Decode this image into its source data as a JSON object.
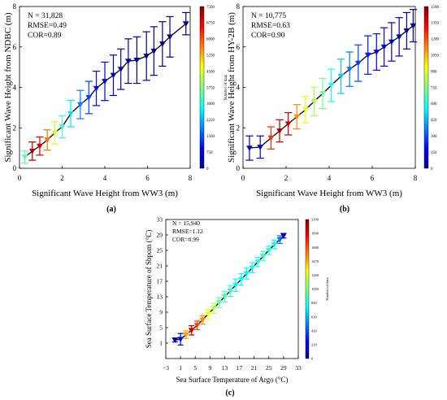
{
  "chart_data": [
    {
      "type": "line",
      "panel_label": "(a)",
      "xlabel": "Significant Wave Height from WW3 (m)",
      "ylabel": "Significant Wave Height from NDBC (m)",
      "xlim": [
        0,
        8
      ],
      "ylim": [
        0,
        8
      ],
      "xticks": [
        "0",
        "2",
        "4",
        "6",
        "8"
      ],
      "yticks": [
        "0",
        "2",
        "4",
        "6",
        "8"
      ],
      "stats": [
        "N = 31,828",
        "RMSE=0.49",
        "COR=0.89"
      ],
      "colorbar": {
        "label": "Number of data",
        "min": 0,
        "max": 7500,
        "ticks": [
          "0",
          "750",
          "1500",
          "2250",
          "3000",
          "3750",
          "4500",
          "5250",
          "6000",
          "6750",
          "7500"
        ]
      },
      "points": [
        {
          "x": 0.25,
          "y": 0.55,
          "err": 0.3,
          "count": 3500
        },
        {
          "x": 0.6,
          "y": 0.85,
          "err": 0.45,
          "count": 7200
        },
        {
          "x": 0.95,
          "y": 1.1,
          "err": 0.45,
          "count": 6900
        },
        {
          "x": 1.3,
          "y": 1.4,
          "err": 0.5,
          "count": 5700
        },
        {
          "x": 1.65,
          "y": 1.75,
          "err": 0.55,
          "count": 4300
        },
        {
          "x": 2.0,
          "y": 2.05,
          "err": 0.55,
          "count": 3300
        },
        {
          "x": 2.4,
          "y": 2.7,
          "err": 0.65,
          "count": 2600
        },
        {
          "x": 2.85,
          "y": 3.15,
          "err": 0.7,
          "count": 1900
        },
        {
          "x": 3.25,
          "y": 3.5,
          "err": 0.8,
          "count": 1400
        },
        {
          "x": 3.6,
          "y": 3.95,
          "err": 0.85,
          "count": 1000
        },
        {
          "x": 4.0,
          "y": 4.3,
          "err": 0.95,
          "count": 700
        },
        {
          "x": 4.4,
          "y": 4.6,
          "err": 1.0,
          "count": 500
        },
        {
          "x": 4.75,
          "y": 4.9,
          "err": 1.0,
          "count": 350
        },
        {
          "x": 5.1,
          "y": 5.3,
          "err": 1.1,
          "count": 250
        },
        {
          "x": 5.5,
          "y": 5.35,
          "err": 1.15,
          "count": 180
        },
        {
          "x": 5.95,
          "y": 5.55,
          "err": 1.2,
          "count": 120
        },
        {
          "x": 6.3,
          "y": 5.8,
          "err": 1.2,
          "count": 80
        },
        {
          "x": 6.7,
          "y": 6.15,
          "err": 1.1,
          "count": 60
        },
        {
          "x": 7.05,
          "y": 6.5,
          "err": 1.0,
          "count": 40
        },
        {
          "x": 7.8,
          "y": 7.15,
          "err": 0.55,
          "count": 20
        }
      ]
    },
    {
      "type": "line",
      "panel_label": "(b)",
      "xlabel": "Significant Wave Height from WW3 (m)",
      "ylabel": "Significant Wave Height from HY-2B (m)",
      "xlim": [
        0,
        8
      ],
      "ylim": [
        0,
        8
      ],
      "xticks": [
        "0",
        "2",
        "4",
        "6",
        "8"
      ],
      "yticks": [
        "0",
        "2",
        "4",
        "6",
        "8"
      ],
      "stats": [
        "N = 10,775",
        "RMSE=0.63",
        "COR=0.90"
      ],
      "colorbar": {
        "label": "Number of data",
        "min": 0,
        "max": 1500,
        "ticks": [
          "0",
          "150",
          "300",
          "450",
          "600",
          "750",
          "900",
          "1050",
          "1200",
          "1350",
          "1500"
        ]
      },
      "points": [
        {
          "x": 0.3,
          "y": 1.0,
          "err": 0.6,
          "count": 90
        },
        {
          "x": 0.8,
          "y": 1.05,
          "err": 0.55,
          "count": 140
        },
        {
          "x": 1.3,
          "y": 1.5,
          "err": 0.55,
          "count": 1250
        },
        {
          "x": 1.7,
          "y": 1.85,
          "err": 0.55,
          "count": 1450
        },
        {
          "x": 2.1,
          "y": 2.2,
          "err": 0.55,
          "count": 1400
        },
        {
          "x": 2.5,
          "y": 2.55,
          "err": 0.6,
          "count": 1100
        },
        {
          "x": 2.9,
          "y": 2.9,
          "err": 0.65,
          "count": 900
        },
        {
          "x": 3.3,
          "y": 3.3,
          "err": 0.7,
          "count": 820
        },
        {
          "x": 3.7,
          "y": 3.7,
          "err": 0.75,
          "count": 720
        },
        {
          "x": 4.1,
          "y": 4.1,
          "err": 0.8,
          "count": 600
        },
        {
          "x": 4.55,
          "y": 4.55,
          "err": 0.85,
          "count": 480
        },
        {
          "x": 4.95,
          "y": 4.9,
          "err": 0.85,
          "count": 360
        },
        {
          "x": 5.35,
          "y": 5.2,
          "err": 0.9,
          "count": 280
        },
        {
          "x": 5.8,
          "y": 5.6,
          "err": 0.95,
          "count": 220
        },
        {
          "x": 6.2,
          "y": 5.75,
          "err": 0.9,
          "count": 170
        },
        {
          "x": 6.55,
          "y": 6.0,
          "err": 0.95,
          "count": 130
        },
        {
          "x": 6.9,
          "y": 6.25,
          "err": 0.95,
          "count": 100
        },
        {
          "x": 7.25,
          "y": 6.5,
          "err": 0.95,
          "count": 70
        },
        {
          "x": 7.6,
          "y": 6.8,
          "err": 0.9,
          "count": 40
        },
        {
          "x": 7.9,
          "y": 7.05,
          "err": 0.8,
          "count": 20
        }
      ]
    },
    {
      "type": "line",
      "panel_label": "(c)",
      "xlabel": "Sea Surface Temperature of Argo (°C)",
      "ylabel": "Sea Surface Temperature of Sbpom (°C)",
      "xlim": [
        -3,
        33
      ],
      "ylim": [
        -3,
        33
      ],
      "xticks": [
        "−3",
        "1",
        "5",
        "9",
        "13",
        "17",
        "21",
        "25",
        "29",
        "33"
      ],
      "yticks": [
        "1",
        "5",
        "9",
        "13",
        "17",
        "21",
        "25",
        "29",
        "33"
      ],
      "stats": [
        "N = 15,940",
        "RMSE=1.12",
        "COR=0.99"
      ],
      "colorbar": {
        "label": "Number of data",
        "min": 0,
        "max": 2100,
        "ticks": [
          "0",
          "210",
          "420",
          "630",
          "840",
          "1050",
          "1260",
          "1470",
          "1680",
          "1890",
          "2100"
        ]
      },
      "points": [
        {
          "x": -0.5,
          "y": 1.8,
          "err": 0.5,
          "count": 100
        },
        {
          "x": 1.0,
          "y": 2.0,
          "err": 1.5,
          "count": 200
        },
        {
          "x": 2.5,
          "y": 3.2,
          "err": 1.0,
          "count": 1500
        },
        {
          "x": 4.0,
          "y": 4.3,
          "err": 1.2,
          "count": 1950
        },
        {
          "x": 5.5,
          "y": 5.6,
          "err": 1.1,
          "count": 1700
        },
        {
          "x": 7.0,
          "y": 7.0,
          "err": 1.1,
          "count": 1550
        },
        {
          "x": 8.5,
          "y": 8.5,
          "err": 1.2,
          "count": 1300
        },
        {
          "x": 10.0,
          "y": 10.0,
          "err": 1.3,
          "count": 1150
        },
        {
          "x": 11.5,
          "y": 11.5,
          "err": 1.3,
          "count": 1000
        },
        {
          "x": 13.0,
          "y": 13.0,
          "err": 1.4,
          "count": 950
        },
        {
          "x": 14.5,
          "y": 14.5,
          "err": 1.4,
          "count": 900
        },
        {
          "x": 16.0,
          "y": 16.0,
          "err": 1.6,
          "count": 800
        },
        {
          "x": 17.5,
          "y": 17.5,
          "err": 1.5,
          "count": 780
        },
        {
          "x": 19.0,
          "y": 19.0,
          "err": 1.4,
          "count": 780
        },
        {
          "x": 20.5,
          "y": 20.5,
          "err": 1.3,
          "count": 820
        },
        {
          "x": 22.0,
          "y": 22.0,
          "err": 1.2,
          "count": 870
        },
        {
          "x": 23.5,
          "y": 23.5,
          "err": 1.2,
          "count": 900
        },
        {
          "x": 25.0,
          "y": 25.0,
          "err": 1.1,
          "count": 880
        },
        {
          "x": 26.5,
          "y": 26.5,
          "err": 1.1,
          "count": 820
        },
        {
          "x": 28.0,
          "y": 27.8,
          "err": 1.0,
          "count": 500
        },
        {
          "x": 29.0,
          "y": 28.8,
          "err": 0.6,
          "count": 150
        }
      ]
    }
  ]
}
